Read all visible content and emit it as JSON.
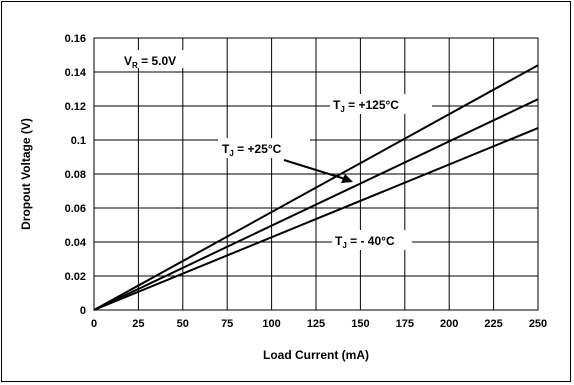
{
  "chart_data": {
    "type": "line",
    "xlabel": "Load Current (mA)",
    "ylabel": "Dropout Voltage (V)",
    "xlim": [
      0,
      250
    ],
    "ylim": [
      0,
      0.16
    ],
    "x_ticks": [
      0,
      25,
      50,
      75,
      100,
      125,
      150,
      175,
      200,
      225,
      250
    ],
    "y_ticks": [
      0,
      0.02,
      0.04,
      0.06,
      0.08,
      0.1,
      0.12,
      0.14,
      0.16
    ],
    "y_tick_labels": [
      "0",
      "0.02",
      "0.04",
      "0.06",
      "0.08",
      "0.1",
      "0.12",
      "0.14",
      "0.16"
    ],
    "grid": true,
    "series": [
      {
        "name_main": "T",
        "name_sub": "J",
        "name_value": " = +125°C",
        "x": [
          0,
          250
        ],
        "y": [
          0,
          0.144
        ]
      },
      {
        "name_main": "T",
        "name_sub": "J",
        "name_value": " = +25°C",
        "x": [
          0,
          250
        ],
        "y": [
          0,
          0.124
        ]
      },
      {
        "name_main": "T",
        "name_sub": "J",
        "name_value": " = - 40°C",
        "x": [
          0,
          250
        ],
        "y": [
          0,
          0.107
        ]
      }
    ],
    "condition": {
      "main": "V",
      "sub": "R",
      "value": " = 5.0V"
    },
    "line_color": "#000000"
  }
}
